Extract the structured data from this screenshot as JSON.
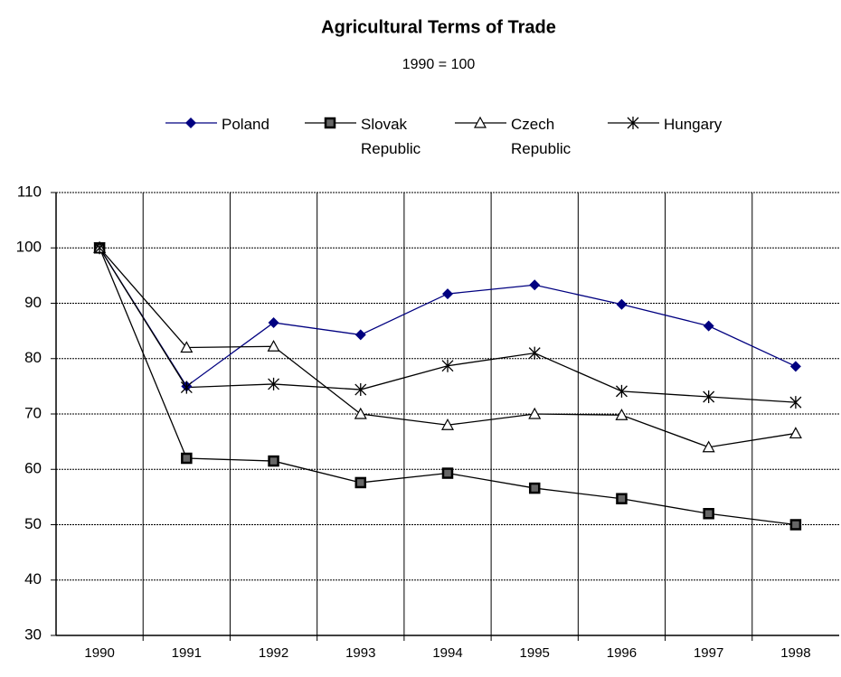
{
  "chart_data": {
    "type": "line",
    "title": "Agricultural Terms of Trade",
    "subtitle": "1990 = 100",
    "categories": [
      "1990",
      "1991",
      "1992",
      "1993",
      "1994",
      "1995",
      "1996",
      "1997",
      "1998"
    ],
    "series": [
      {
        "name": "Poland",
        "color": "#000080",
        "marker": "diamond",
        "values": [
          100,
          75,
          86.5,
          84.3,
          91.7,
          93.3,
          89.8,
          85.9,
          78.6
        ]
      },
      {
        "name": "Slovak Republic",
        "color": "#000000",
        "marker": "square",
        "values": [
          100,
          62,
          61.5,
          57.6,
          59.3,
          56.6,
          54.7,
          52,
          50
        ]
      },
      {
        "name": "Czech Republic",
        "color": "#000000",
        "marker": "triangle",
        "values": [
          100,
          82,
          82.2,
          70,
          68,
          70,
          69.8,
          64,
          66.5
        ]
      },
      {
        "name": "Hungary",
        "color": "#000000",
        "marker": "asterisk",
        "values": [
          100,
          74.8,
          75.4,
          74.4,
          78.7,
          81,
          74.1,
          73.1,
          72.1
        ]
      }
    ],
    "ylim": [
      30,
      110
    ],
    "yticks": [
      30,
      40,
      50,
      60,
      70,
      80,
      90,
      100,
      110
    ],
    "grid": true,
    "legend": "top"
  }
}
